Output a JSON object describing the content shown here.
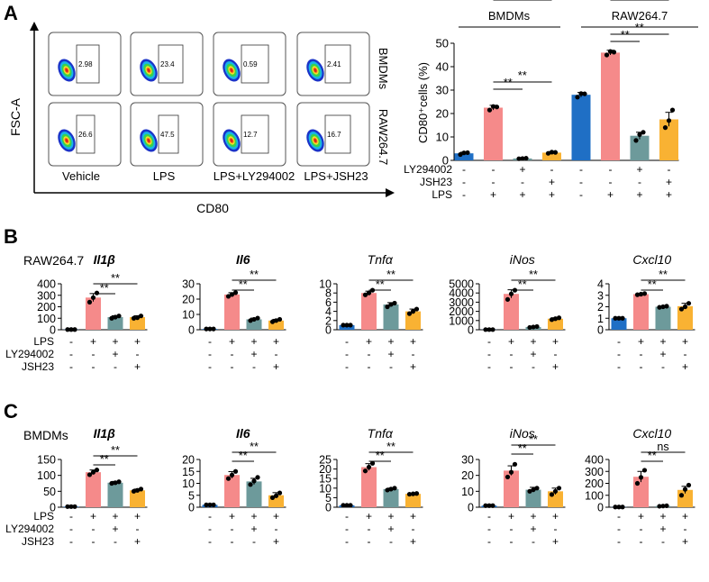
{
  "colors": {
    "blue": "#1f6fc5",
    "pink": "#f58a8a",
    "teal": "#6d9a9b",
    "orange": "#f9b233",
    "axis": "#000000"
  },
  "panel_labels": {
    "a": "A",
    "b": "B",
    "c": "C"
  },
  "panel_a": {
    "flow": {
      "y_label": "FSC-A",
      "x_label": "CD80",
      "columns": [
        "Vehicle",
        "LPS",
        "LPS+LY294002",
        "LPS+JSH23"
      ],
      "rows": [
        "BMDMs",
        "RAW264.7"
      ],
      "values": [
        [
          "2.98",
          "23.4",
          "0.59",
          "2.41"
        ],
        [
          "26.6",
          "47.5",
          "12.7",
          "16.7"
        ]
      ]
    }
  },
  "chart_data": [
    {
      "type": "bar",
      "panel": "A",
      "title": "",
      "group_labels": [
        "BMDMs",
        "RAW264.7"
      ],
      "ylabel": "CD80⁺cells (%)",
      "ylim": [
        0,
        50
      ],
      "yticks": [
        "0",
        "10",
        "20",
        "30",
        "40",
        "50"
      ],
      "row_labels": [
        "LY294002",
        "JSH23",
        "LPS"
      ],
      "row_signs": [
        [
          "-",
          "-",
          "+",
          "-",
          "-",
          "-",
          "+",
          "-"
        ],
        [
          "-",
          "-",
          "-",
          "+",
          "-",
          "-",
          "-",
          "+"
        ],
        [
          "-",
          "+",
          "+",
          "+",
          "-",
          "+",
          "+",
          "+"
        ]
      ],
      "values": [
        3,
        22.5,
        0.8,
        3.3,
        28,
        46,
        10.5,
        17.5
      ],
      "errors": [
        0.5,
        1,
        0.2,
        0.4,
        1,
        1,
        1.5,
        3
      ],
      "points": [
        [
          2.5,
          3.2,
          3.3
        ],
        [
          21.5,
          23,
          22.8
        ],
        [
          0.7,
          0.8,
          0.9
        ],
        [
          3,
          3.5,
          3.4
        ],
        [
          27,
          28.5,
          28.4
        ],
        [
          45,
          46.5,
          46.2
        ],
        [
          8.5,
          11,
          12
        ],
        [
          14,
          17,
          21.5
        ]
      ],
      "bar_colors": [
        "blue",
        "pink",
        "teal",
        "orange",
        "blue",
        "pink",
        "teal",
        "orange"
      ],
      "significance": [
        {
          "from": 1,
          "to": 2,
          "label": "**"
        },
        {
          "from": 1,
          "to": 3,
          "label": "**"
        },
        {
          "from": 5,
          "to": 6,
          "label": "**"
        },
        {
          "from": 5,
          "to": 7,
          "label": "**"
        }
      ]
    },
    {
      "type": "bar",
      "panel": "B",
      "cell": "RAW264.7",
      "title": "Il1β",
      "ylim": [
        0,
        400
      ],
      "yticks": [
        "0",
        "100",
        "200",
        "300",
        "400"
      ],
      "values": [
        2,
        280,
        110,
        110
      ],
      "errors": [
        1,
        35,
        12,
        12
      ],
      "points": [
        [
          2,
          2,
          2
        ],
        [
          240,
          280,
          320
        ],
        [
          100,
          110,
          120
        ],
        [
          100,
          105,
          120
        ]
      ],
      "significance": [
        {
          "from": 1,
          "to": 2,
          "label": "**"
        },
        {
          "from": 1,
          "to": 3,
          "label": "**"
        }
      ]
    },
    {
      "type": "bar",
      "panel": "B",
      "title": "Il6",
      "ylim": [
        0,
        30
      ],
      "yticks": [
        "0",
        "10",
        "20",
        "30"
      ],
      "values": [
        0.5,
        23,
        6.8,
        6
      ],
      "errors": [
        0.1,
        1.2,
        0.8,
        0.8
      ],
      "points": [
        [
          0.5,
          0.5,
          0.5
        ],
        [
          21.8,
          23,
          24.2
        ],
        [
          6,
          6.8,
          7.6
        ],
        [
          5.2,
          6,
          6.8
        ]
      ],
      "significance": [
        {
          "from": 1,
          "to": 2,
          "label": "**"
        },
        {
          "from": 1,
          "to": 3,
          "label": "**"
        }
      ]
    },
    {
      "type": "bar",
      "panel": "B",
      "title": "Tnfα",
      "ylim": [
        0,
        10
      ],
      "yticks": [
        "0",
        "2",
        "4",
        "6",
        "8",
        "10"
      ],
      "values": [
        1,
        8,
        5.5,
        4
      ],
      "errors": [
        0.05,
        0.4,
        0.4,
        0.5
      ],
      "points": [
        [
          1,
          1,
          1
        ],
        [
          7.6,
          8,
          8.6
        ],
        [
          5,
          5.5,
          5.8
        ],
        [
          3.5,
          4,
          4.5
        ]
      ],
      "significance": [
        {
          "from": 1,
          "to": 2,
          "label": "**"
        },
        {
          "from": 1,
          "to": 3,
          "label": "**"
        }
      ]
    },
    {
      "type": "bar",
      "panel": "B",
      "title": "iNos",
      "ylim": [
        0,
        5000
      ],
      "yticks": [
        "0",
        "1000",
        "2000",
        "3000",
        "4000",
        "5000"
      ],
      "values": [
        20,
        3900,
        300,
        1200
      ],
      "errors": [
        10,
        450,
        60,
        100
      ],
      "points": [
        [
          20,
          20,
          20
        ],
        [
          3300,
          3900,
          4300
        ],
        [
          250,
          300,
          350
        ],
        [
          1100,
          1200,
          1300
        ]
      ],
      "significance": [
        {
          "from": 1,
          "to": 2,
          "label": "**"
        },
        {
          "from": 1,
          "to": 3,
          "label": "**"
        }
      ]
    },
    {
      "type": "bar",
      "panel": "B",
      "title": "Cxcl10",
      "ylim": [
        0,
        4
      ],
      "yticks": [
        "0",
        "1",
        "2",
        "3",
        "4"
      ],
      "values": [
        1,
        3.1,
        2,
        2.05
      ],
      "errors": [
        0.02,
        0.05,
        0.05,
        0.25
      ],
      "points": [
        [
          1,
          1,
          1
        ],
        [
          3.05,
          3.1,
          3.15
        ],
        [
          1.95,
          2,
          2.05
        ],
        [
          1.8,
          2,
          2.3
        ]
      ],
      "significance": [
        {
          "from": 1,
          "to": 2,
          "label": "**"
        },
        {
          "from": 1,
          "to": 3,
          "label": "**"
        }
      ]
    },
    {
      "type": "bar",
      "panel": "C",
      "cell": "BMDMs",
      "title": "Il1β",
      "ylim": [
        0,
        150
      ],
      "yticks": [
        "0",
        "50",
        "100",
        "150"
      ],
      "values": [
        2,
        110,
        77,
        53
      ],
      "errors": [
        1,
        7,
        4,
        4
      ],
      "points": [
        [
          2,
          2,
          2
        ],
        [
          102,
          110,
          117
        ],
        [
          75,
          77,
          80
        ],
        [
          50,
          53,
          57
        ]
      ],
      "significance": [
        {
          "from": 1,
          "to": 2,
          "label": "**"
        },
        {
          "from": 1,
          "to": 3,
          "label": "**"
        }
      ]
    },
    {
      "type": "bar",
      "panel": "C",
      "title": "Il6",
      "ylim": [
        0,
        20
      ],
      "yticks": [
        "0",
        "5",
        "10",
        "15",
        "20"
      ],
      "values": [
        1,
        13.5,
        10.8,
        5
      ],
      "errors": [
        0.05,
        1.4,
        1.3,
        1.1
      ],
      "points": [
        [
          1,
          1,
          1
        ],
        [
          12,
          13.5,
          15
        ],
        [
          9.5,
          11,
          12.5
        ],
        [
          4,
          4.8,
          6
        ]
      ],
      "significance": [
        {
          "from": 1,
          "to": 2,
          "label": "**"
        },
        {
          "from": 1,
          "to": 3,
          "label": "**"
        }
      ]
    },
    {
      "type": "bar",
      "panel": "C",
      "title": "Tnfα",
      "ylim": [
        0,
        25
      ],
      "yticks": [
        "0",
        "5",
        "10",
        "15",
        "20",
        "25"
      ],
      "values": [
        1,
        21,
        9.5,
        7
      ],
      "errors": [
        0.05,
        1.8,
        0.5,
        0.2
      ],
      "points": [
        [
          1,
          1,
          1
        ],
        [
          19,
          21,
          23
        ],
        [
          9,
          9.5,
          10
        ],
        [
          6.8,
          7,
          7.2
        ]
      ],
      "significance": [
        {
          "from": 1,
          "to": 2,
          "label": "**"
        },
        {
          "from": 1,
          "to": 3,
          "label": "**"
        }
      ]
    },
    {
      "type": "bar",
      "panel": "C",
      "title": "iNos",
      "ylim": [
        0,
        30
      ],
      "yticks": [
        "0",
        "10",
        "20",
        "30"
      ],
      "values": [
        1,
        23,
        11,
        10
      ],
      "errors": [
        0.05,
        3,
        1.5,
        2
      ],
      "points": [
        [
          1,
          1,
          1
        ],
        [
          19,
          22,
          27
        ],
        [
          10,
          11,
          12
        ],
        [
          8,
          10,
          12
        ]
      ],
      "significance": [
        {
          "from": 1,
          "to": 2,
          "label": "**"
        },
        {
          "from": 1,
          "to": 3,
          "label": "**"
        }
      ]
    },
    {
      "type": "bar",
      "panel": "C",
      "title": "Cxcl10",
      "ylim": [
        0,
        400
      ],
      "yticks": [
        "0",
        "100",
        "200",
        "300",
        "400"
      ],
      "values": [
        2,
        255,
        10,
        145
      ],
      "errors": [
        1,
        45,
        3,
        30
      ],
      "points": [
        [
          2,
          2,
          2
        ],
        [
          200,
          250,
          310
        ],
        [
          8,
          10,
          12
        ],
        [
          100,
          150,
          185
        ]
      ],
      "significance": [
        {
          "from": 1,
          "to": 2,
          "label": "**"
        },
        {
          "from": 1,
          "to": 3,
          "label": "ns"
        }
      ]
    }
  ],
  "condition_rows": {
    "labels": [
      "LPS",
      "LY294002",
      "JSH23"
    ],
    "signs": [
      [
        "-",
        "+",
        "+",
        "+"
      ],
      [
        "-",
        "-",
        "+",
        "-"
      ],
      [
        "-",
        "-",
        "-",
        "+"
      ]
    ]
  }
}
